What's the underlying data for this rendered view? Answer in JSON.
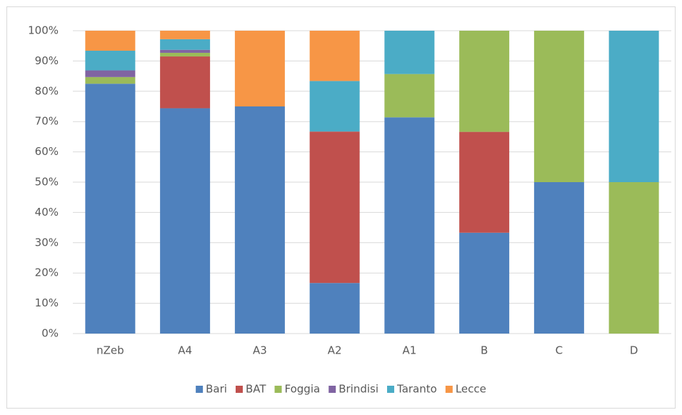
{
  "chart_data": {
    "type": "stacked_bar",
    "categories": [
      "nZeb",
      "A4",
      "A3",
      "A2",
      "A1",
      "B",
      "C",
      "D"
    ],
    "series": [
      {
        "name": "Bari",
        "color": "#4f81bd",
        "values": [
          82.5,
          74.4,
          75,
          16.7,
          71.4,
          33.3,
          50,
          0
        ]
      },
      {
        "name": "BAT",
        "color": "#c0504d",
        "values": [
          0,
          17.1,
          0,
          50,
          0,
          33.3,
          0,
          0
        ]
      },
      {
        "name": "Foggia",
        "color": "#9bbb59",
        "values": [
          2.2,
          1.2,
          0,
          0,
          14.3,
          33.4,
          50,
          50
        ]
      },
      {
        "name": "Brindisi",
        "color": "#8064a2",
        "values": [
          2.2,
          1.0,
          0,
          0,
          0,
          0,
          0,
          0
        ]
      },
      {
        "name": "Taranto",
        "color": "#4bacc6",
        "values": [
          6.5,
          3.5,
          0,
          16.7,
          14.3,
          0,
          0,
          50
        ]
      },
      {
        "name": "Lecce",
        "color": "#f79646",
        "values": [
          6.6,
          2.8,
          25,
          16.6,
          0,
          0,
          0,
          0
        ]
      }
    ],
    "ylim": [
      0,
      100
    ],
    "yticks": [
      {
        "value": 0,
        "label": "0%"
      },
      {
        "value": 10,
        "label": "10%"
      },
      {
        "value": 20,
        "label": "20%"
      },
      {
        "value": 30,
        "label": "30%"
      },
      {
        "value": 40,
        "label": "40%"
      },
      {
        "value": 50,
        "label": "50%"
      },
      {
        "value": 60,
        "label": "60%"
      },
      {
        "value": 70,
        "label": "70%"
      },
      {
        "value": 80,
        "label": "80%"
      },
      {
        "value": 90,
        "label": "90%"
      },
      {
        "value": 100,
        "label": "100%"
      }
    ],
    "grid": true,
    "legend": "bottom"
  }
}
